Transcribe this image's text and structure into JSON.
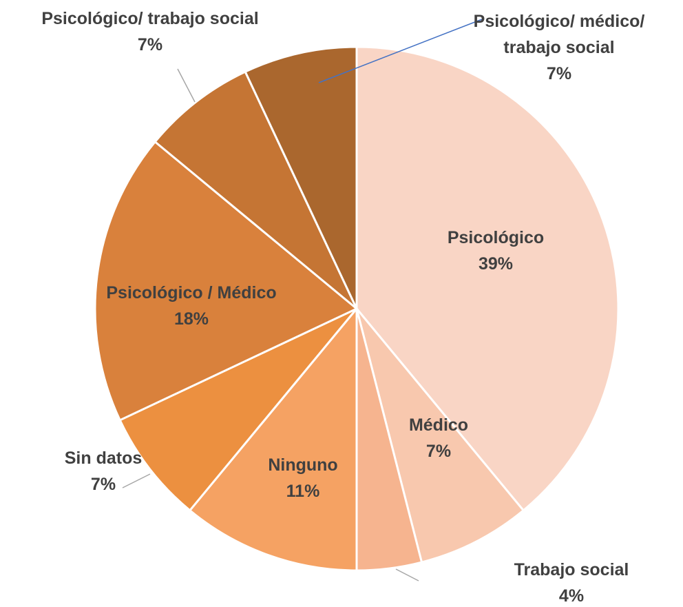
{
  "chart_data": {
    "type": "pie",
    "categories": [
      "Psicológico",
      "Médico",
      "Trabajo social",
      "Ninguno",
      "Sin datos",
      "Psicológico / Médico",
      "Psicológico/ trabajo social",
      "Psicológico/ médico/ trabajo social"
    ],
    "values": [
      39,
      7,
      4,
      11,
      7,
      18,
      7,
      7
    ],
    "value_labels": [
      "39%",
      "7%",
      "4%",
      "11%",
      "7%",
      "18%",
      "7%",
      "7%"
    ],
    "colors": [
      "#f9d5c5",
      "#f8c8ae",
      "#f6b48f",
      "#f5a263",
      "#ec9040",
      "#d9813c",
      "#c57534",
      "#aa672e"
    ]
  }
}
